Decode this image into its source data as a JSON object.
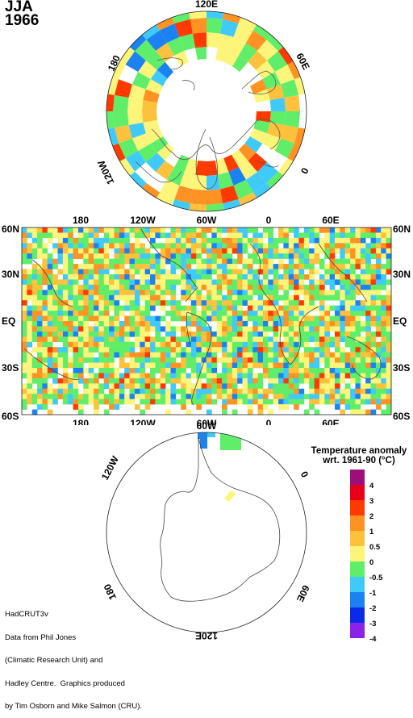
{
  "title": {
    "season": "JJA",
    "year": "1966"
  },
  "north_polar": {
    "lon_labels": {
      "top": "120E",
      "left": "180",
      "right": "60E",
      "lower_left": "120W",
      "lower_right": "0"
    }
  },
  "global_map": {
    "top_lon_labels": [
      "180",
      "120W",
      "60W",
      "0",
      "60E"
    ],
    "bottom_lon_labels": [
      "180",
      "120W",
      "60W",
      "0",
      "60E"
    ],
    "lat_labels": [
      "60N",
      "30N",
      "EQ",
      "30S",
      "60S"
    ]
  },
  "south_polar": {
    "lon_labels": {
      "top": "60W",
      "left": "120W",
      "right": "0",
      "lower_left": "180",
      "lower_right": "60E",
      "bottom": "120E"
    }
  },
  "legend": {
    "title_line1": "Temperature anomaly",
    "title_line2": "wrt. 1961-90  (°C)",
    "labels": [
      "4",
      "3",
      "2",
      "1",
      "0.5",
      "0",
      "-0.5",
      "-1",
      "-2",
      "-3",
      "-4"
    ],
    "colors": [
      "#9e0e7a",
      "#e8001a",
      "#fe3a00",
      "#fe9222",
      "#fdc13c",
      "#fdf47a",
      "#60ee6a",
      "#40cafa",
      "#1c82f2",
      "#0a2ae6",
      "#8a22e8"
    ]
  },
  "credit": [
    "HadCRUT3v",
    "Data from Phil Jones",
    "(Climatic Research Unit) and",
    "Hadley Centre.  Graphics produced",
    "by Tim Osborn and Mike Salmon (CRU)."
  ]
}
